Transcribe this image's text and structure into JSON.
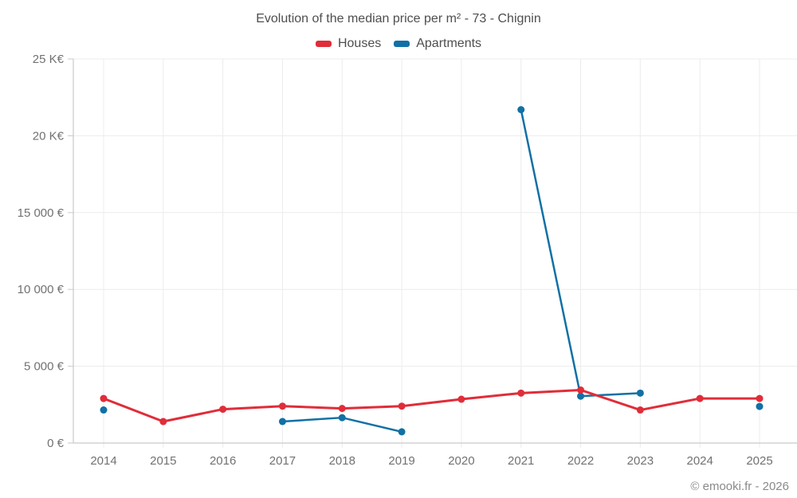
{
  "footer": {
    "attribution": "© emooki.fr - 2026"
  },
  "colors": {
    "houses": "#e02d39",
    "apartments": "#1170a5",
    "gridline": "#ececec",
    "axis": "#c9c9c9",
    "title_text": "#4e4e4e",
    "axis_text": "#717171"
  },
  "chart_data": {
    "type": "line",
    "title": "Evolution of the median price per m² - 73 - Chignin",
    "categories": [
      "2014",
      "2015",
      "2016",
      "2017",
      "2018",
      "2019",
      "2020",
      "2021",
      "2022",
      "2023",
      "2024",
      "2025"
    ],
    "series": [
      {
        "name": "Houses",
        "color": "#e02d39",
        "values": [
          2900,
          1400,
          2200,
          2400,
          2250,
          2400,
          2850,
          3250,
          3450,
          2150,
          2900,
          2900
        ]
      },
      {
        "name": "Apartments",
        "color": "#1170a5",
        "values": [
          2150,
          null,
          null,
          1400,
          1650,
          730,
          null,
          21700,
          3050,
          3250,
          null,
          2380
        ]
      }
    ],
    "xlabel": "",
    "ylabel": "",
    "ylim": [
      0,
      25000
    ],
    "grid": true,
    "legend_position": "top",
    "y_ticks": [
      {
        "value": 0,
        "label": "0 €"
      },
      {
        "value": 5000,
        "label": "5 000 €"
      },
      {
        "value": 10000,
        "label": "10 000 €"
      },
      {
        "value": 15000,
        "label": "15 000 €"
      },
      {
        "value": 20000,
        "label": "20 K€"
      },
      {
        "value": 25000,
        "label": "25 K€"
      }
    ]
  }
}
